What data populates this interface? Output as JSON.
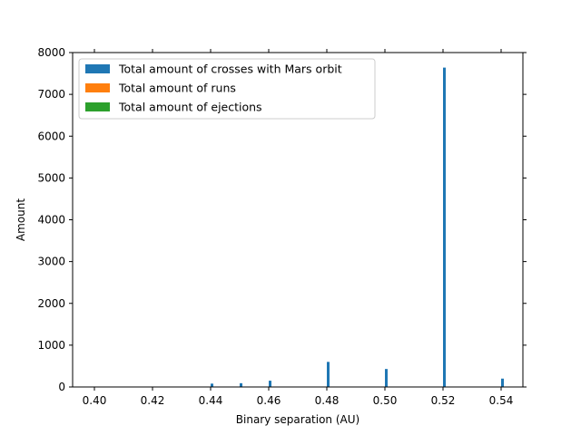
{
  "chart_data": {
    "type": "bar",
    "title": "",
    "xlabel": "Binary separation (AU)",
    "ylabel": "Amount",
    "xlim": [
      0.3925,
      0.5475
    ],
    "ylim": [
      0,
      8000
    ],
    "xticks": [
      "0.40",
      "0.42",
      "0.44",
      "0.46",
      "0.48",
      "0.50",
      "0.52",
      "0.54"
    ],
    "xtick_values": [
      0.4,
      0.42,
      0.44,
      0.46,
      0.48,
      0.5,
      0.52,
      0.54
    ],
    "yticks": [
      "0",
      "1000",
      "2000",
      "3000",
      "4000",
      "5000",
      "6000",
      "7000",
      "8000"
    ],
    "ytick_values": [
      0,
      1000,
      2000,
      3000,
      4000,
      5000,
      6000,
      7000,
      8000
    ],
    "legend_position": "top-left",
    "grid": false,
    "series": [
      {
        "name": "Total amount of crosses with Mars orbit",
        "color": "#1f77b4",
        "x": [
          0.4,
          0.42,
          0.44,
          0.45,
          0.46,
          0.48,
          0.5,
          0.52,
          0.54
        ],
        "values": [
          0,
          0,
          80,
          90,
          150,
          600,
          430,
          7640,
          200
        ]
      },
      {
        "name": "Total amount of runs",
        "color": "#ff7f0e",
        "x": [
          0.4,
          0.42,
          0.44,
          0.45,
          0.46,
          0.48,
          0.5,
          0.52,
          0.54
        ],
        "values": [
          10,
          10,
          10,
          10,
          10,
          10,
          10,
          10,
          10
        ]
      },
      {
        "name": "Total amount of ejections",
        "color": "#2ca02c",
        "x": [
          0.4,
          0.42,
          0.44,
          0.45,
          0.46,
          0.48,
          0.5,
          0.52,
          0.54
        ],
        "values": [
          0,
          0,
          0,
          0,
          0,
          0,
          0,
          0,
          0
        ]
      }
    ]
  }
}
